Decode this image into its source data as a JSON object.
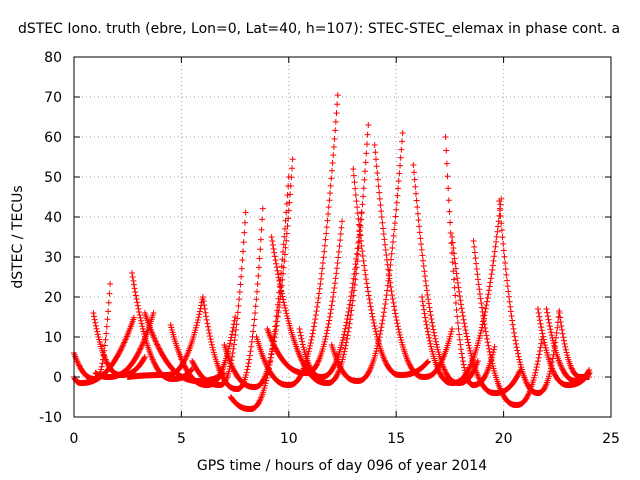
{
  "chart_data": {
    "type": "scatter",
    "title": "dSTEC Iono. truth (ebre, Lon=0, Lat=40, h=107): STEC-STEC_elemax in phase cont. a",
    "xlabel": "GPS time / hours of day 096 of year 2014",
    "ylabel": "dSTEC  / TECUs",
    "xlim": [
      0,
      25
    ],
    "ylim": [
      -10,
      80
    ],
    "x_ticks": [
      0,
      5,
      10,
      15,
      20,
      25
    ],
    "y_ticks": [
      -10,
      0,
      10,
      20,
      30,
      40,
      50,
      60,
      70,
      80
    ],
    "grid": true,
    "legend": "none",
    "marker": "plus",
    "color": "#ff0000",
    "series_arcs": [
      {
        "t0": 0.0,
        "t1": 1.7,
        "tmin": 1.0,
        "ymin": -0.5,
        "y0": 6,
        "y1": 25
      },
      {
        "t0": 0.0,
        "t1": 2.8,
        "tmin": 0.3,
        "ymin": -1.5,
        "y0": 0,
        "y1": 15
      },
      {
        "t0": 0.9,
        "t1": 3.3,
        "tmin": 2.2,
        "ymin": 0.5,
        "y0": 16,
        "y1": 5
      },
      {
        "t0": 2.7,
        "t1": 5.5,
        "tmin": 4.6,
        "ymin": -0.5,
        "y0": 26,
        "y1": 2
      },
      {
        "t0": 1.0,
        "t1": 3.7,
        "tmin": 1.6,
        "ymin": 0.0,
        "y0": 1,
        "y1": 16
      },
      {
        "t0": 2.5,
        "t1": 6.0,
        "tmin": 4.3,
        "ymin": 0.5,
        "y0": 0,
        "y1": 20
      },
      {
        "t0": 3.3,
        "t1": 7.0,
        "tmin": 5.8,
        "ymin": -1.0,
        "y0": 16,
        "y1": 1
      },
      {
        "t0": 4.5,
        "t1": 7.5,
        "tmin": 6.2,
        "ymin": -2.0,
        "y0": 13,
        "y1": 15
      },
      {
        "t0": 5.5,
        "t1": 8.0,
        "tmin": 6.8,
        "ymin": -2.0,
        "y0": 4,
        "y1": 42
      },
      {
        "t0": 6.0,
        "t1": 8.8,
        "tmin": 7.6,
        "ymin": -3.0,
        "y0": 20,
        "y1": 43
      },
      {
        "t0": 7.3,
        "t1": 10.0,
        "tmin": 8.2,
        "ymin": -8.0,
        "y0": -5,
        "y1": 50
      },
      {
        "t0": 7.0,
        "t1": 10.2,
        "tmin": 8.4,
        "ymin": -2.5,
        "y0": 8,
        "y1": 56
      },
      {
        "t0": 8.5,
        "t1": 12.3,
        "tmin": 10.0,
        "ymin": -2.0,
        "y0": 10,
        "y1": 72
      },
      {
        "t0": 9.2,
        "t1": 13.7,
        "tmin": 11.8,
        "ymin": -1.5,
        "y0": 35,
        "y1": 63
      },
      {
        "t0": 9.0,
        "t1": 12.5,
        "tmin": 10.8,
        "ymin": 1.0,
        "y0": 12,
        "y1": 40
      },
      {
        "t0": 10.5,
        "t1": 13.4,
        "tmin": 11.5,
        "ymin": 0.0,
        "y0": 12,
        "y1": 42
      },
      {
        "t0": 12.0,
        "t1": 15.3,
        "tmin": 13.2,
        "ymin": -1.0,
        "y0": 8,
        "y1": 61
      },
      {
        "t0": 13.0,
        "t1": 16.5,
        "tmin": 15.2,
        "ymin": 0.5,
        "y0": 52,
        "y1": 4
      },
      {
        "t0": 14.0,
        "t1": 17.6,
        "tmin": 16.3,
        "ymin": 0.0,
        "y0": 58,
        "y1": 12
      },
      {
        "t0": 15.8,
        "t1": 18.8,
        "tmin": 17.9,
        "ymin": -1.5,
        "y0": 53,
        "y1": 4
      },
      {
        "t0": 17.3,
        "t1": 19.6,
        "tmin": 18.6,
        "ymin": -2.0,
        "y0": 60,
        "y1": 8
      },
      {
        "t0": 16.2,
        "t1": 19.9,
        "tmin": 17.6,
        "ymin": -1.5,
        "y0": 20,
        "y1": 45
      },
      {
        "t0": 17.6,
        "t1": 20.8,
        "tmin": 19.6,
        "ymin": -4.0,
        "y0": 35,
        "y1": 2
      },
      {
        "t0": 18.6,
        "t1": 21.8,
        "tmin": 20.6,
        "ymin": -7.0,
        "y0": 34,
        "y1": 10
      },
      {
        "t0": 19.8,
        "t1": 22.6,
        "tmin": 21.6,
        "ymin": -4.0,
        "y0": 44,
        "y1": 17
      },
      {
        "t0": 21.6,
        "t1": 24.0,
        "tmin": 23.0,
        "ymin": -2.0,
        "y0": 17,
        "y1": 1
      },
      {
        "t0": 22.0,
        "t1": 24.0,
        "tmin": 23.4,
        "ymin": -1.0,
        "y0": 17,
        "y1": 2
      },
      {
        "t0": 22.6,
        "t1": 24.0,
        "tmin": 23.6,
        "ymin": 0.0,
        "y0": 16,
        "y1": 0
      }
    ]
  }
}
